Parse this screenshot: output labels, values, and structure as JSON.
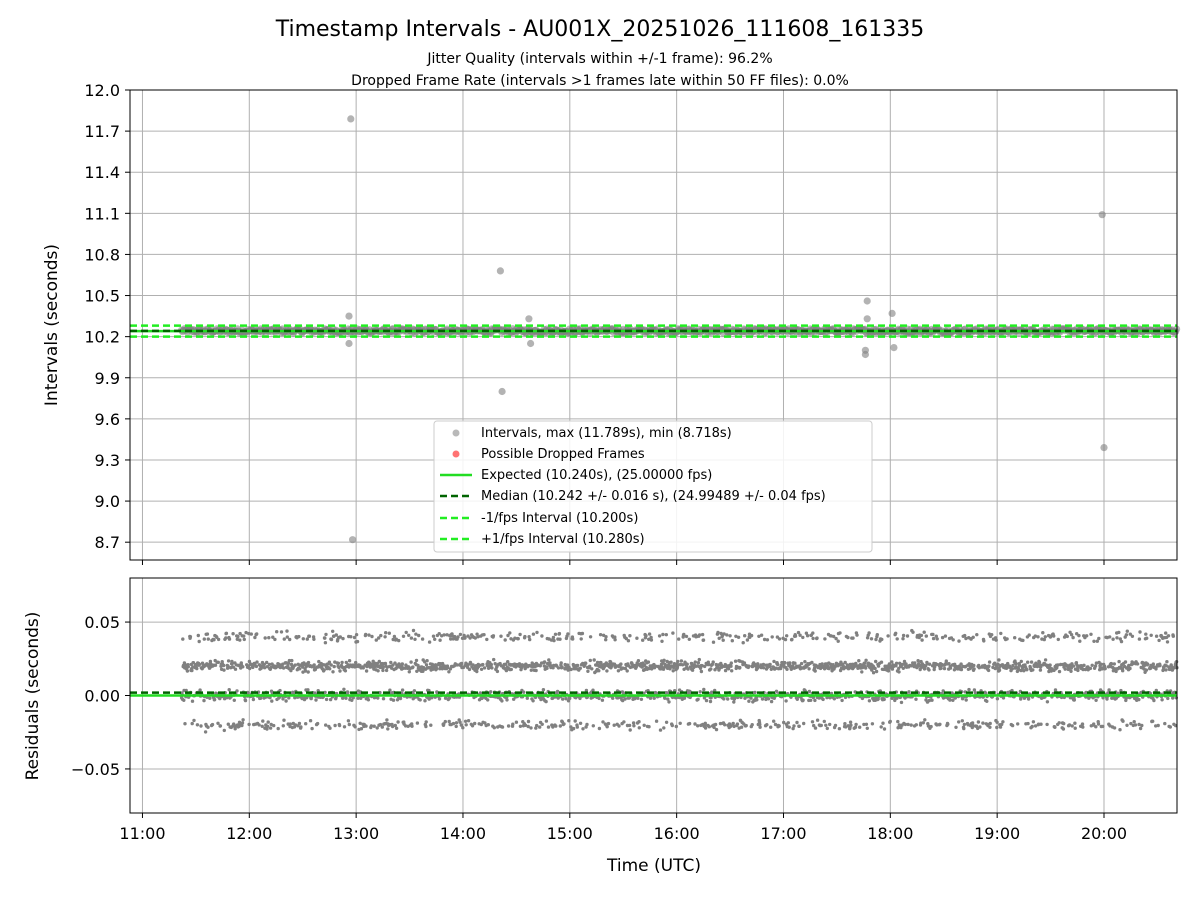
{
  "title": "Timestamp Intervals - AU001X_20251026_111608_161335",
  "subtitle_1": "Jitter Quality (intervals within +/-1 frame): 96.2%",
  "subtitle_2": "Dropped Frame Rate (intervals >1 frames late within 50 FF files): 0.0%",
  "colors": {
    "intervals": "#808080",
    "dropped": "#ff0000",
    "expected": "#22dd22",
    "median": "#006400",
    "bound": "#22ee22",
    "grid": "#b0b0b0"
  },
  "chart_data": [
    {
      "type": "scatter",
      "panel": "top",
      "ylabel": "Intervals (seconds)",
      "xlabel": "",
      "xlim": [
        "10:53",
        "20:41"
      ],
      "ylim": [
        8.57,
        12.0
      ],
      "yticks": [
        "12.0",
        "11.7",
        "11.4",
        "11.1",
        "10.8",
        "10.5",
        "10.2",
        "9.9",
        "9.6",
        "9.3",
        "9.0",
        "8.7"
      ],
      "grid": true,
      "legend_position": "lower-center",
      "legend": [
        "Intervals, max (11.789s), min (8.718s)",
        "Possible Dropped Frames",
        "Expected (10.240s), (25.00000 fps)",
        "Median (10.242 +/- 0.016 s), (24.99489 +/- 0.04 fps)",
        "-1/fps Interval (10.200s)",
        "+1/fps Interval (10.280s)"
      ],
      "reference_lines": {
        "expected": 10.24,
        "median": 10.242,
        "minus_1fps": 10.2,
        "plus_1fps": 10.28
      },
      "data_range": {
        "x_start": "11:22",
        "x_end": "20:41",
        "baseline": 10.242,
        "spread": 0.02
      },
      "outliers": [
        {
          "x": "12:57",
          "y": 11.789
        },
        {
          "x": "12:56",
          "y": 10.35
        },
        {
          "x": "12:56",
          "y": 10.15
        },
        {
          "x": "12:58",
          "y": 8.718
        },
        {
          "x": "14:21",
          "y": 10.68
        },
        {
          "x": "14:22",
          "y": 9.8
        },
        {
          "x": "14:37",
          "y": 10.33
        },
        {
          "x": "14:38",
          "y": 10.15
        },
        {
          "x": "17:47",
          "y": 10.46
        },
        {
          "x": "17:47",
          "y": 10.33
        },
        {
          "x": "17:46",
          "y": 10.1
        },
        {
          "x": "17:46",
          "y": 10.07
        },
        {
          "x": "18:01",
          "y": 10.37
        },
        {
          "x": "18:02",
          "y": 10.12
        },
        {
          "x": "19:59",
          "y": 11.09
        },
        {
          "x": "20:00",
          "y": 9.39
        }
      ],
      "dropped_frames": []
    },
    {
      "type": "scatter",
      "panel": "bottom",
      "ylabel": "Residuals (seconds)",
      "xlabel": "Time (UTC)",
      "xlim": [
        "10:53",
        "20:41"
      ],
      "ylim": [
        -0.08,
        0.08
      ],
      "yticks": [
        "0.05",
        "0.00",
        "−0.05"
      ],
      "xticks": [
        "11:00",
        "12:00",
        "13:00",
        "14:00",
        "15:00",
        "16:00",
        "17:00",
        "18:00",
        "19:00",
        "20:00"
      ],
      "grid": true,
      "reference_lines": {
        "expected": 0.0,
        "median": 0.002
      },
      "residual_levels": [
        0.02,
        0.0,
        0.04,
        -0.02
      ],
      "residual_level_weights": [
        0.4,
        0.35,
        0.125,
        0.125
      ]
    }
  ]
}
